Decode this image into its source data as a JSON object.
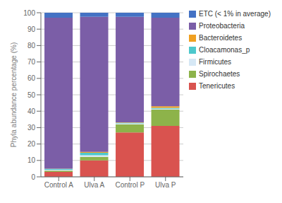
{
  "chart_data": {
    "type": "bar",
    "stacked": true,
    "categories": [
      "Control A",
      "Ulva A",
      "Control P",
      "Ulva P"
    ],
    "series": [
      {
        "name": "Tenericutes",
        "color": "#d9534f",
        "values": [
          3.0,
          10.0,
          27.0,
          31.0
        ]
      },
      {
        "name": "Spirochaetes",
        "color": "#8db34a",
        "values": [
          0.8,
          2.2,
          5.0,
          10.0
        ]
      },
      {
        "name": "Firmicutes",
        "color": "#d6e8f5",
        "values": [
          0.5,
          1.0,
          0.5,
          0.5
        ]
      },
      {
        "name": "Cloacamonas_p",
        "color": "#4dc8cc",
        "values": [
          0.5,
          1.5,
          0.5,
          0.5
        ]
      },
      {
        "name": "Bacteroidetes",
        "color": "#f0a020",
        "values": [
          0.2,
          0.5,
          0.2,
          1.0
        ]
      },
      {
        "name": "Proteobacteria",
        "color": "#7b5ea7",
        "values": [
          92.0,
          82.3,
          64.3,
          54.0
        ]
      },
      {
        "name": "ETC (< 1% in average)",
        "color": "#4472c4",
        "values": [
          3.0,
          2.5,
          2.5,
          3.0
        ]
      }
    ],
    "ylabel": "Phyla abundance percentage (%)",
    "ylim": [
      0,
      100
    ],
    "yticks": [
      0,
      10,
      20,
      30,
      40,
      50,
      60,
      70,
      80,
      90,
      100
    ],
    "grid": true,
    "legend": "right"
  }
}
